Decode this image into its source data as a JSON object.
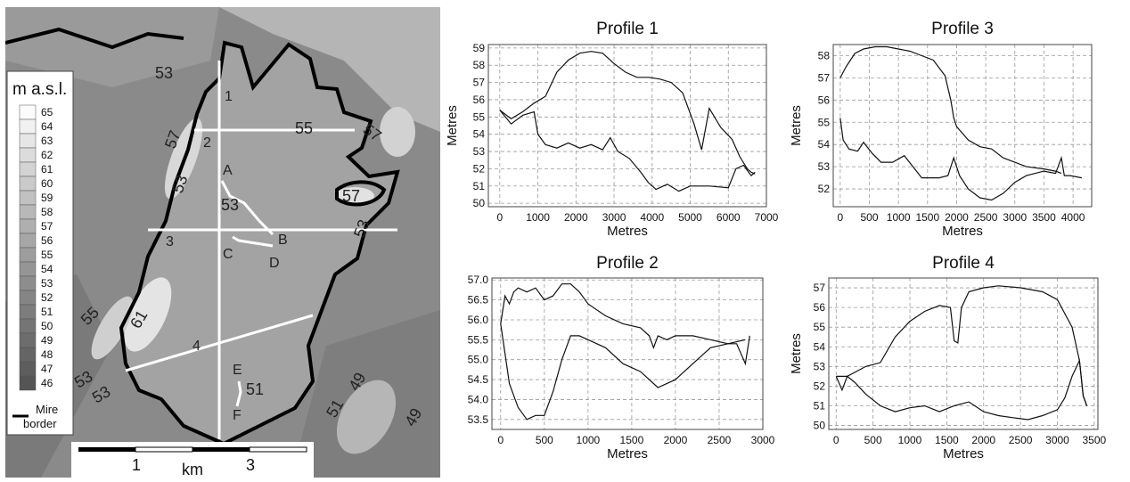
{
  "colors": {
    "line": "#111111",
    "grid": "#9a9a9a",
    "transect": "#ffffff",
    "border": "#000000"
  },
  "map": {
    "legend_title": "m a.s.l.",
    "legend_values": [
      "65",
      "64",
      "63",
      "62",
      "61",
      "60",
      "59",
      "58",
      "57",
      "56",
      "55",
      "54",
      "53",
      "52",
      "51",
      "50",
      "49",
      "48",
      "47",
      "46"
    ],
    "legend_colors": [
      "#fbfbfb",
      "#f1f1f1",
      "#e6e6e6",
      "#dcdcdc",
      "#d3d3d3",
      "#cacaca",
      "#c1c1c1",
      "#b8b8b8",
      "#afafaf",
      "#a6a6a6",
      "#9d9d9d",
      "#959595",
      "#8d8d8d",
      "#858585",
      "#7d7d7d",
      "#757575",
      "#6d6d6d",
      "#656565",
      "#5d5d5d",
      "#555555"
    ],
    "border_label_1": "Mire",
    "border_label_2": "border",
    "profile_labels": [
      "1",
      "2",
      "3",
      "4"
    ],
    "point_labels": [
      "A",
      "B",
      "C",
      "D",
      "E",
      "F"
    ],
    "contour_labels": [
      "53",
      "55",
      "57",
      "57",
      "51",
      "53",
      "53",
      "55",
      "61",
      "53",
      "53",
      "51",
      "49",
      "49",
      "57"
    ],
    "scale_labels": [
      "1",
      "km",
      "3"
    ]
  },
  "chart_data": [
    {
      "type": "line",
      "title": "Profile 1",
      "xlabel": "Metres",
      "ylabel": "Metres",
      "xlim": [
        -300,
        7000
      ],
      "ylim": [
        49.8,
        59.2
      ],
      "xticks": [
        0,
        1000,
        2000,
        3000,
        4000,
        5000,
        6000,
        7000
      ],
      "yticks": [
        50,
        51,
        52,
        53,
        54,
        55,
        56,
        57,
        58,
        59
      ],
      "grid": true,
      "series": [
        {
          "x": [
            0,
            300,
            600,
            900,
            1200,
            1500,
            1800,
            2100,
            2400,
            2700,
            3000,
            3300,
            3600,
            3900,
            4200,
            4500,
            4800,
            5100,
            5300,
            5500,
            5800,
            6100,
            6300,
            6500,
            6600,
            6700
          ],
          "y": [
            55.4,
            54.9,
            55.3,
            55.8,
            56.2,
            57.6,
            58.3,
            58.7,
            58.8,
            58.7,
            58.1,
            57.6,
            57.3,
            57.3,
            57.2,
            57.0,
            56.4,
            54.6,
            53.1,
            55.5,
            54.4,
            53.7,
            52.7,
            52.0,
            51.8,
            51.7
          ]
        },
        {
          "x": [
            0,
            300,
            600,
            900,
            1000,
            1200,
            1500,
            1800,
            2100,
            2400,
            2700,
            2900,
            3100,
            3400,
            3700,
            3900,
            4100,
            4400,
            4700,
            5000,
            5500,
            6000,
            6200,
            6400,
            6600,
            6700
          ],
          "y": [
            55.4,
            54.6,
            55.1,
            55.3,
            54.0,
            53.4,
            53.2,
            53.5,
            53.2,
            53.4,
            53.1,
            53.8,
            53.0,
            52.6,
            51.8,
            51.2,
            50.8,
            51.1,
            50.7,
            51.0,
            51.0,
            50.9,
            52.0,
            52.2,
            51.6,
            51.8
          ]
        }
      ]
    },
    {
      "type": "line",
      "title": "Profile 3",
      "xlabel": "Metres",
      "ylabel": "Metres",
      "xlim": [
        -120,
        4320
      ],
      "ylim": [
        51.2,
        58.5
      ],
      "xticks": [
        0,
        500,
        1000,
        1500,
        2000,
        2500,
        3000,
        3500,
        4000
      ],
      "yticks": [
        52,
        53,
        54,
        55,
        56,
        57,
        58
      ],
      "grid": true,
      "series": [
        {
          "x": [
            0,
            100,
            250,
            400,
            600,
            800,
            1000,
            1200,
            1400,
            1600,
            1800,
            1900,
            1950,
            2000,
            2200,
            2400,
            2600,
            2800,
            3000,
            3200,
            3500,
            3700,
            3800
          ],
          "y": [
            57.0,
            57.5,
            58.1,
            58.3,
            58.4,
            58.4,
            58.3,
            58.2,
            58.0,
            57.8,
            57.1,
            56.0,
            55.2,
            54.8,
            54.2,
            53.9,
            53.8,
            53.4,
            53.2,
            53.0,
            52.9,
            52.8,
            52.7
          ]
        },
        {
          "x": [
            0,
            50,
            150,
            300,
            400,
            550,
            700,
            900,
            1100,
            1250,
            1400,
            1700,
            1850,
            1950,
            2050,
            2200,
            2400,
            2600,
            2800,
            3000,
            3200,
            3500,
            3700,
            3800,
            3850,
            3950,
            4150
          ],
          "y": [
            55.2,
            54.2,
            53.8,
            53.7,
            54.1,
            53.6,
            53.2,
            53.2,
            53.5,
            53.0,
            52.5,
            52.5,
            52.6,
            53.4,
            52.6,
            52.0,
            51.6,
            51.5,
            51.8,
            52.3,
            52.6,
            52.8,
            52.7,
            53.4,
            52.6,
            52.6,
            52.5
          ]
        }
      ]
    },
    {
      "type": "line",
      "title": "Profile 2",
      "xlabel": "Metres",
      "ylabel": "",
      "xlim": [
        -100,
        3000
      ],
      "ylim": [
        53.25,
        57.05
      ],
      "xticks": [
        0,
        500,
        1000,
        1500,
        2000,
        2500,
        3000
      ],
      "yticks": [
        53.5,
        54.0,
        54.5,
        55.0,
        55.5,
        56.0,
        56.5,
        57.0
      ],
      "grid": true,
      "series": [
        {
          "x": [
            0,
            50,
            100,
            150,
            200,
            300,
            400,
            500,
            600,
            700,
            800,
            900,
            1000,
            1200,
            1400,
            1600,
            1700,
            1750,
            1800,
            1900,
            2000,
            2200,
            2400,
            2600,
            2700,
            2800,
            2850
          ],
          "y": [
            55.9,
            56.6,
            56.4,
            56.7,
            56.8,
            56.7,
            56.8,
            56.5,
            56.6,
            56.9,
            56.9,
            56.7,
            56.4,
            56.1,
            55.9,
            55.8,
            55.6,
            55.3,
            55.6,
            55.5,
            55.6,
            55.6,
            55.5,
            55.4,
            55.4,
            54.9,
            55.6
          ]
        },
        {
          "x": [
            0,
            100,
            200,
            300,
            400,
            500,
            600,
            700,
            800,
            900,
            1000,
            1200,
            1400,
            1600,
            1800,
            2000,
            2200,
            2400,
            2600,
            2800
          ],
          "y": [
            55.9,
            54.4,
            53.8,
            53.5,
            53.6,
            53.6,
            54.2,
            55.0,
            55.6,
            55.6,
            55.5,
            55.3,
            54.9,
            54.7,
            54.3,
            54.5,
            54.9,
            55.3,
            55.4,
            55.5
          ]
        }
      ]
    },
    {
      "type": "line",
      "title": "Profile 4",
      "xlabel": "Metres",
      "ylabel": "Metres",
      "xlim": [
        -100,
        3550
      ],
      "ylim": [
        49.8,
        57.5
      ],
      "xticks": [
        0,
        500,
        1000,
        1500,
        2000,
        2500,
        3000,
        3500
      ],
      "yticks": [
        50,
        51,
        52,
        53,
        54,
        55,
        56,
        57
      ],
      "grid": true,
      "series": [
        {
          "x": [
            0,
            150,
            400,
            600,
            800,
            1000,
            1200,
            1400,
            1550,
            1600,
            1650,
            1700,
            1800,
            2000,
            2200,
            2500,
            2800,
            3000,
            3200,
            3300,
            3350,
            3400
          ],
          "y": [
            52.5,
            52.5,
            53.0,
            53.2,
            54.5,
            55.3,
            55.8,
            56.1,
            56.0,
            54.3,
            54.2,
            56.0,
            56.8,
            57.0,
            57.1,
            57.0,
            56.8,
            56.4,
            55.0,
            53.3,
            51.5,
            51.0
          ]
        },
        {
          "x": [
            0,
            80,
            150,
            250,
            400,
            600,
            800,
            1000,
            1200,
            1400,
            1600,
            1800,
            2000,
            2200,
            2400,
            2600,
            2800,
            3000,
            3100,
            3200,
            3300,
            3350,
            3400
          ],
          "y": [
            52.5,
            51.8,
            52.5,
            52.2,
            51.6,
            51.0,
            50.7,
            50.9,
            51.0,
            50.7,
            51.0,
            51.2,
            50.7,
            50.5,
            50.4,
            50.3,
            50.5,
            50.8,
            51.4,
            52.5,
            53.3,
            51.5,
            51.0
          ]
        }
      ]
    }
  ]
}
